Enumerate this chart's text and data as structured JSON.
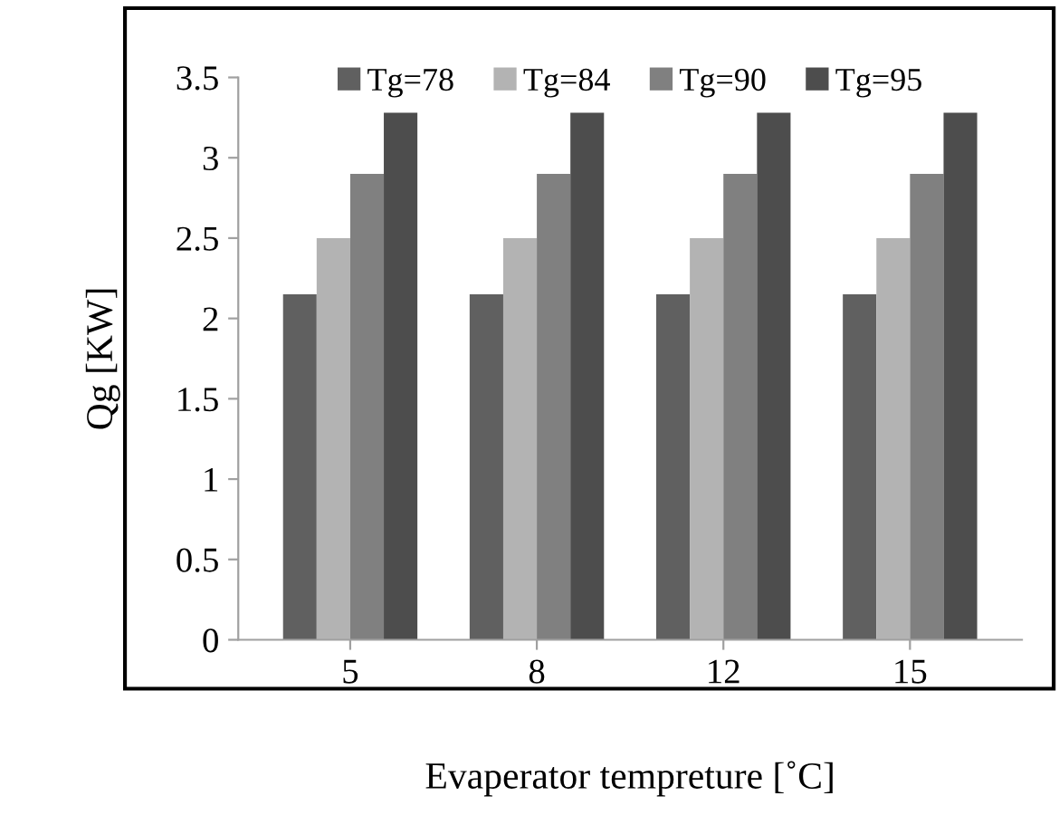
{
  "chart_data": {
    "type": "bar",
    "xlabel": "Evaperator tempreture [˚C]",
    "ylabel": "Qg [KW]",
    "categories": [
      "5",
      "8",
      "12",
      "15"
    ],
    "series": [
      {
        "name": "Tg=78",
        "color": "#606060",
        "values": [
          2.15,
          2.15,
          2.15,
          2.15
        ]
      },
      {
        "name": "Tg=84",
        "color": "#b3b3b3",
        "values": [
          2.5,
          2.5,
          2.5,
          2.5
        ]
      },
      {
        "name": "Tg=90",
        "color": "#808080",
        "values": [
          2.9,
          2.9,
          2.9,
          2.9
        ]
      },
      {
        "name": "Tg=95",
        "color": "#4d4d4d",
        "values": [
          3.28,
          3.28,
          3.28,
          3.28
        ]
      }
    ],
    "ylim": [
      0,
      3.5
    ],
    "yticks": [
      0,
      0.5,
      1,
      1.5,
      2,
      2.5,
      3,
      3.5
    ],
    "grid": false,
    "legend": "top"
  }
}
